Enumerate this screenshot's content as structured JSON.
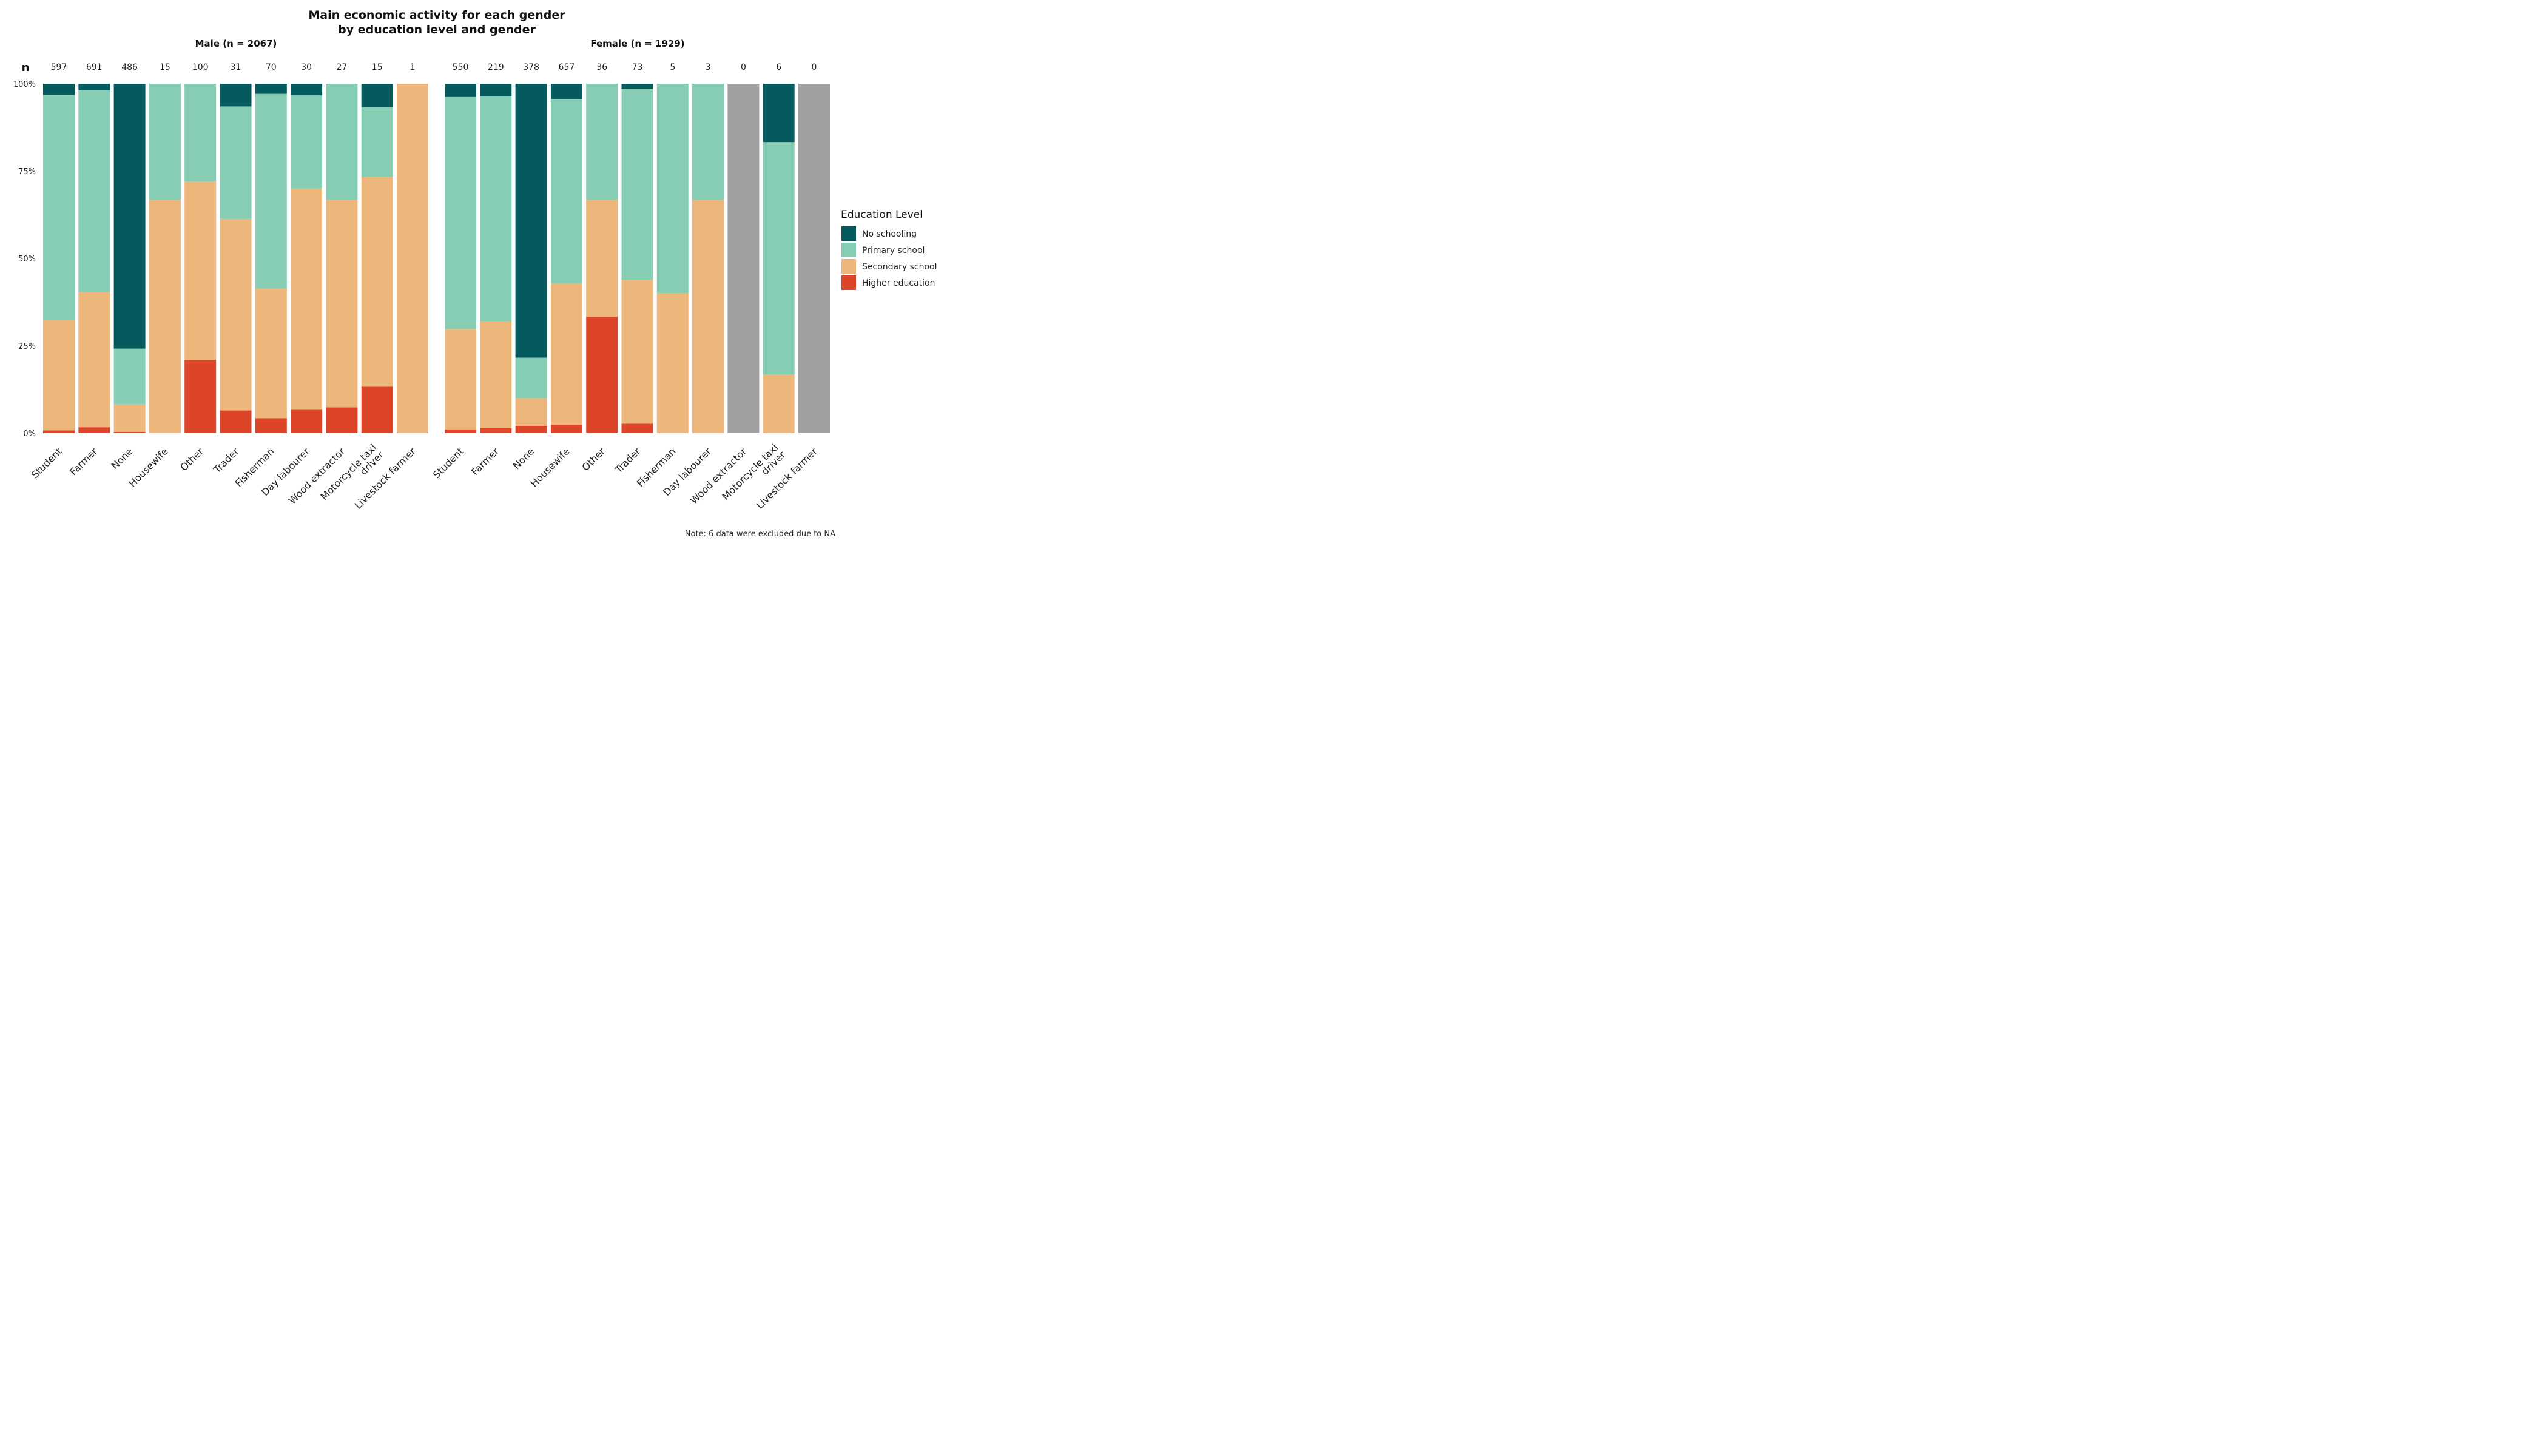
{
  "chart_data": {
    "type": "bar",
    "stacked": "percent",
    "title_lines": [
      "Main economic activity for each gender",
      "by education level and gender"
    ],
    "n_label": "n",
    "ylim": [
      0,
      1
    ],
    "y_ticks": [
      "0%",
      "25%",
      "50%",
      "75%",
      "100%"
    ],
    "legend": {
      "title": "Education Level",
      "position": "right",
      "entries": [
        "No schooling",
        "Primary school",
        "Secondary school",
        "Higher education"
      ]
    },
    "colors": {
      "No schooling": "#045a5c",
      "Primary school": "#87cdb4",
      "Secondary school": "#edb67a",
      "Higher education": "#dd4528",
      "NA": "#a0a0a0"
    },
    "note": "Note: 6 data were excluded due to NA",
    "panels": [
      {
        "label": "Male (n = 2067)",
        "categories": [
          "Student",
          "Farmer",
          "None",
          "Housewife",
          "Other",
          "Trader",
          "Fisherman",
          "Day labourer",
          "Wood extractor",
          "Motorcycle taxi driver",
          "Livestock farmer"
        ],
        "category_lines": [
          [
            "Student"
          ],
          [
            "Farmer"
          ],
          [
            "None"
          ],
          [
            "Housewife"
          ],
          [
            "Other"
          ],
          [
            "Trader"
          ],
          [
            "Fisherman"
          ],
          [
            "Day labourer"
          ],
          [
            "Wood extractor"
          ],
          [
            "Motorcycle taxi",
            "driver"
          ],
          [
            "Livestock farmer"
          ]
        ],
        "n": [
          "597",
          "691",
          "486",
          "15",
          "100",
          "31",
          "70",
          "30",
          "27",
          "15",
          "1"
        ],
        "series": [
          {
            "name": "Higher education",
            "values": [
              0.008,
              0.017,
              0.004,
              0,
              0.21,
              0.065,
              0.043,
              0.067,
              0.074,
              0.133,
              0
            ]
          },
          {
            "name": "Secondary school",
            "values": [
              0.315,
              0.386,
              0.078,
              0.667,
              0.51,
              0.548,
              0.371,
              0.633,
              0.593,
              0.6,
              1
            ]
          },
          {
            "name": "Primary school",
            "values": [
              0.645,
              0.578,
              0.16,
              0.333,
              0.28,
              0.322,
              0.557,
              0.267,
              0.333,
              0.2,
              0
            ]
          },
          {
            "name": "No schooling",
            "values": [
              0.032,
              0.019,
              0.758,
              0,
              0,
              0.065,
              0.029,
              0.033,
              0,
              0.067,
              0
            ]
          }
        ]
      },
      {
        "label": "Female (n = 1929)",
        "categories": [
          "Student",
          "Farmer",
          "None",
          "Housewife",
          "Other",
          "Trader",
          "Fisherman",
          "Day labourer",
          "Wood extractor",
          "Motorcycle taxi driver",
          "Livestock farmer"
        ],
        "category_lines": [
          [
            "Student"
          ],
          [
            "Farmer"
          ],
          [
            "None"
          ],
          [
            "Housewife"
          ],
          [
            "Other"
          ],
          [
            "Trader"
          ],
          [
            "Fisherman"
          ],
          [
            "Day labourer"
          ],
          [
            "Wood extractor"
          ],
          [
            "Motorcycle taxi",
            "driver"
          ],
          [
            "Livestock farmer"
          ]
        ],
        "n": [
          "550",
          "219",
          "378",
          "657",
          "36",
          "73",
          "5",
          "3",
          "0",
          "6",
          "0"
        ],
        "series": [
          {
            "name": "Higher education",
            "values": [
              0.011,
              0.014,
              0.021,
              0.024,
              0.333,
              0.027,
              0,
              0,
              0,
              0,
              0
            ]
          },
          {
            "name": "Secondary school",
            "values": [
              0.287,
              0.306,
              0.079,
              0.405,
              0.334,
              0.411,
              0.4,
              0.667,
              0,
              0.167,
              0
            ]
          },
          {
            "name": "Primary school",
            "values": [
              0.664,
              0.644,
              0.116,
              0.527,
              0.333,
              0.548,
              0.6,
              0.333,
              0,
              0.666,
              0
            ]
          },
          {
            "name": "No schooling",
            "values": [
              0.038,
              0.036,
              0.784,
              0.044,
              0,
              0.014,
              0,
              0,
              0,
              0.167,
              0
            ]
          }
        ]
      }
    ]
  }
}
